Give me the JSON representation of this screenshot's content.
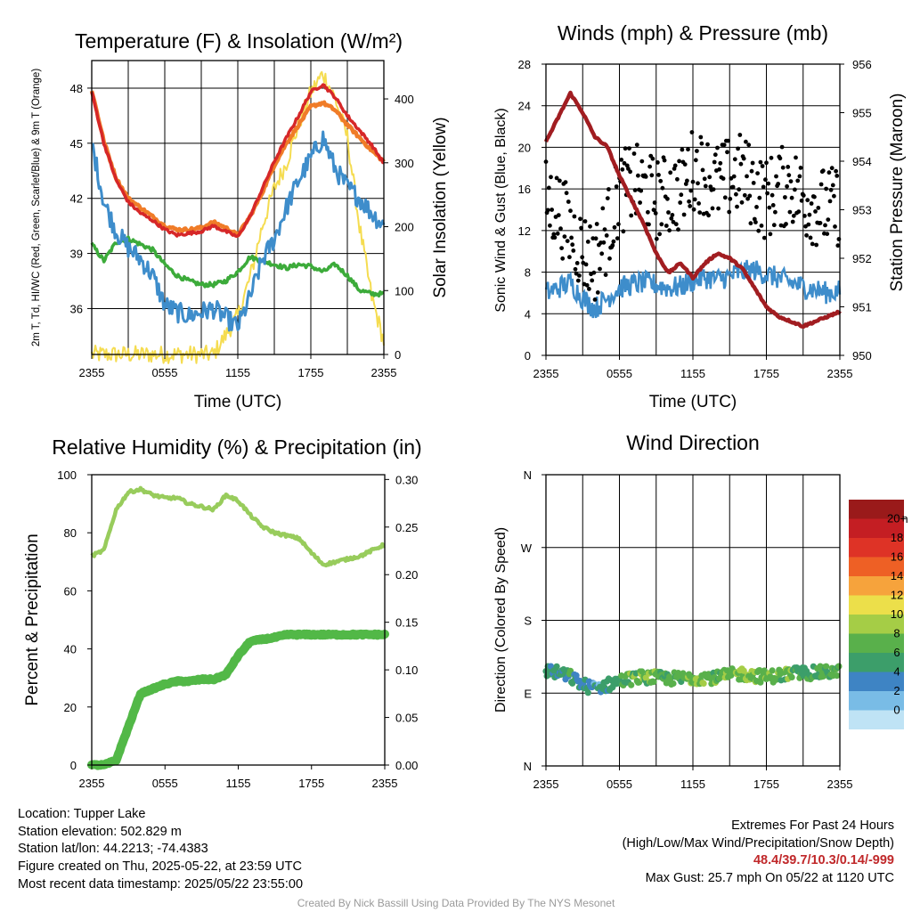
{
  "chart_data": [
    {
      "type": "line",
      "title": "Temperature (F) & Insolation (W/m²)",
      "xlabel": "Time (UTC)",
      "ylabel": "2m T, Td, HI/WC (Red, Green, Scarlet/Blue) & 9m T (Orange)",
      "ylabel2": "Solar Insolation (Yellow)",
      "x_ticks": [
        "2355",
        "0555",
        "1155",
        "1755",
        "2355"
      ],
      "ylim": [
        33.5,
        49.5
      ],
      "y_ticks": [
        36,
        39,
        42,
        45,
        48
      ],
      "y2lim": [
        0,
        460
      ],
      "y2_ticks": [
        0,
        100,
        200,
        300,
        400
      ],
      "x": [
        0,
        1,
        2,
        3,
        4,
        5,
        6,
        7,
        8,
        9,
        10,
        11,
        12,
        13,
        14,
        15,
        16,
        17,
        18,
        19,
        20,
        21,
        22,
        23,
        24
      ],
      "series": [
        {
          "name": "2m T",
          "color": "#d62728",
          "axis": "left",
          "values": [
            47.8,
            45.0,
            43.0,
            41.8,
            41.2,
            40.8,
            40.3,
            40.0,
            40.1,
            40.2,
            40.5,
            40.2,
            39.9,
            41.0,
            42.5,
            44.0,
            45.3,
            46.5,
            47.8,
            48.2,
            47.5,
            46.5,
            45.7,
            44.9,
            43.9
          ]
        },
        {
          "name": "9m T",
          "color": "#f07c28",
          "axis": "left",
          "values": [
            47.9,
            45.1,
            43.1,
            42.0,
            41.5,
            41.0,
            40.5,
            40.3,
            40.3,
            40.4,
            40.7,
            40.4,
            40.0,
            41.0,
            42.3,
            43.8,
            45.0,
            46.0,
            47.0,
            47.2,
            46.8,
            46.0,
            45.3,
            44.6,
            44.0
          ]
        },
        {
          "name": "Td",
          "color": "#3cab3a",
          "axis": "left",
          "values": [
            39.5,
            38.6,
            39.6,
            39.8,
            39.5,
            39.2,
            38.4,
            37.8,
            37.5,
            37.3,
            37.3,
            37.5,
            38.0,
            38.8,
            38.6,
            38.4,
            38.2,
            38.4,
            38.3,
            38.0,
            38.4,
            37.8,
            37.0,
            36.8,
            36.8
          ]
        },
        {
          "name": "HI/WC",
          "color": "#3e8dcb",
          "axis": "left",
          "values": [
            45.0,
            41.8,
            40.2,
            39.3,
            38.7,
            37.8,
            36.2,
            35.8,
            35.6,
            35.8,
            36.0,
            35.5,
            35.0,
            36.6,
            38.6,
            39.8,
            41.5,
            43.0,
            44.2,
            45.3,
            43.6,
            42.6,
            42.0,
            41.2,
            40.5
          ]
        },
        {
          "name": "Solar Insolation",
          "color": "#f5dc50",
          "axis": "right",
          "values": [
            0,
            0,
            0,
            0,
            0,
            0,
            0,
            0,
            0,
            0,
            0,
            30,
            60,
            120,
            200,
            260,
            300,
            360,
            410,
            440,
            400,
            340,
            200,
            90,
            20
          ]
        }
      ]
    },
    {
      "type": "scatter",
      "title": "Winds (mph) & Pressure (mb)",
      "xlabel": "Time (UTC)",
      "ylabel": "Sonic Wind & Gust (Blue, Black)",
      "ylabel2": "Station Pressure (Maroon)",
      "x_ticks": [
        "2355",
        "0555",
        "1155",
        "1755",
        "2355"
      ],
      "ylim": [
        0,
        28
      ],
      "y_ticks": [
        0,
        4,
        8,
        12,
        16,
        20,
        24,
        28
      ],
      "y2lim": [
        950,
        956
      ],
      "y2_ticks": [
        950,
        951,
        952,
        953,
        954,
        955,
        956
      ],
      "x": [
        0,
        1,
        2,
        3,
        4,
        5,
        6,
        7,
        8,
        9,
        10,
        11,
        12,
        13,
        14,
        15,
        16,
        17,
        18,
        19,
        20,
        21,
        22,
        23,
        24
      ],
      "series": [
        {
          "name": "Sonic Wind",
          "color": "#3e8dcb",
          "axis": "left",
          "values": [
            6.0,
            6.5,
            7.0,
            5.5,
            4.5,
            5.5,
            6.5,
            6.8,
            7.0,
            6.8,
            6.5,
            6.6,
            7.2,
            7.5,
            7.3,
            7.6,
            8.0,
            8.2,
            7.8,
            7.4,
            7.0,
            6.6,
            6.3,
            6.0,
            6.2
          ]
        },
        {
          "name": "Gust",
          "color": "#000000",
          "axis": "left",
          "values": [
            15.0,
            14.0,
            12.0,
            10.0,
            9.0,
            12.0,
            15.5,
            16.5,
            16.0,
            15.0,
            15.5,
            15.8,
            18.0,
            17.5,
            16.5,
            17.0,
            17.5,
            16.0,
            15.0,
            16.0,
            16.5,
            15.0,
            14.5,
            14.0,
            14.5
          ]
        },
        {
          "name": "Station Pressure",
          "color": "#a11d21",
          "axis": "right",
          "values": [
            954.4,
            954.9,
            955.4,
            955.0,
            954.5,
            954.3,
            953.7,
            953.2,
            952.7,
            952.1,
            951.7,
            951.9,
            951.6,
            951.9,
            952.1,
            952.0,
            951.8,
            951.4,
            951.0,
            950.8,
            950.7,
            950.6,
            950.7,
            950.8,
            950.9
          ]
        }
      ]
    },
    {
      "type": "line",
      "title": "Relative Humidity (%) & Precipitation (in)",
      "xlabel": "",
      "ylabel": "Percent & Precipitation",
      "x_ticks": [
        "2355",
        "0555",
        "1155",
        "1755",
        "2355"
      ],
      "ylim": [
        0,
        100
      ],
      "y_ticks": [
        0,
        20,
        40,
        60,
        80,
        100
      ],
      "y2lim": [
        0,
        0.305
      ],
      "y2_ticks": [
        "0.00",
        "0.05",
        "0.10",
        "0.15",
        "0.20",
        "0.25",
        "0.30"
      ],
      "x": [
        0,
        1,
        2,
        3,
        4,
        5,
        6,
        7,
        8,
        9,
        10,
        11,
        12,
        13,
        14,
        15,
        16,
        17,
        18,
        19,
        20,
        21,
        22,
        23,
        24
      ],
      "series": [
        {
          "name": "Relative Humidity",
          "color": "#98cc5c",
          "axis": "left",
          "values": [
            72,
            74,
            88,
            94,
            95,
            93,
            92,
            92,
            90,
            89,
            88,
            93,
            91,
            86,
            82,
            80,
            79,
            78,
            73,
            69,
            70,
            71,
            72,
            74,
            76
          ]
        },
        {
          "name": "Precipitation",
          "color": "#52b847",
          "axis": "right",
          "values": [
            0,
            0,
            0.005,
            0.04,
            0.075,
            0.08,
            0.085,
            0.088,
            0.088,
            0.09,
            0.09,
            0.095,
            0.115,
            0.13,
            0.132,
            0.134,
            0.137,
            0.137,
            0.137,
            0.137,
            0.137,
            0.137,
            0.137,
            0.137,
            0.137
          ]
        }
      ]
    },
    {
      "type": "scatter",
      "title": "Wind Direction",
      "ylabel": "Direction (Colored By Speed)",
      "x_ticks": [
        "2355",
        "0555",
        "1155",
        "1755",
        "2355"
      ],
      "y_ticks": [
        "N",
        "E",
        "S",
        "W",
        "N"
      ],
      "ylim": [
        0,
        360
      ],
      "x": [
        0,
        1,
        2,
        3,
        4,
        5,
        6,
        7,
        8,
        9,
        10,
        11,
        12,
        13,
        14,
        15,
        16,
        17,
        18,
        19,
        20,
        21,
        22,
        23,
        24
      ],
      "direction_deg": [
        118,
        115,
        110,
        100,
        96,
        100,
        105,
        108,
        110,
        109,
        108,
        108,
        109,
        110,
        109,
        112,
        114,
        112,
        110,
        112,
        114,
        115,
        115,
        116,
        116
      ],
      "speed_mph": [
        5,
        4,
        5,
        4,
        3,
        4,
        6,
        7,
        7,
        7,
        6,
        7,
        8,
        8,
        7,
        7,
        8,
        8,
        7,
        7,
        7,
        6,
        6,
        6,
        6
      ],
      "colorbar": {
        "title": "mph",
        "labels": [
          "0",
          "2",
          "4",
          "6",
          "8",
          "10",
          "12",
          "14",
          "16",
          "18",
          "20+"
        ],
        "colors": [
          "#bfe3f5",
          "#79bce6",
          "#3e84c4",
          "#3c9e6a",
          "#59b04b",
          "#a5cd46",
          "#ecdf4a",
          "#f6a33c",
          "#ee6025",
          "#de3326",
          "#c41e23",
          "#9a1a1a"
        ]
      }
    }
  ],
  "info": {
    "location": "Location: Tupper Lake",
    "elevation": "Station elevation: 502.829 m",
    "latlon": "Station lat/lon: 44.2213; -74.4383",
    "created": "Figure created on Thu, 2025-05-22, at 23:59 UTC",
    "recent": "Most recent data timestamp: 2025/05/22 23:55:00"
  },
  "extremes": {
    "title": "Extremes For Past 24 Hours",
    "subtitle": "(High/Low/Max Wind/Precipitation/Snow Depth)",
    "values": "48.4/39.7/10.3/0.14/-999",
    "gust": "Max Gust: 25.7 mph On 05/22 at 1120 UTC"
  },
  "credit": "Created By Nick Bassill Using Data Provided By The NYS Mesonet"
}
